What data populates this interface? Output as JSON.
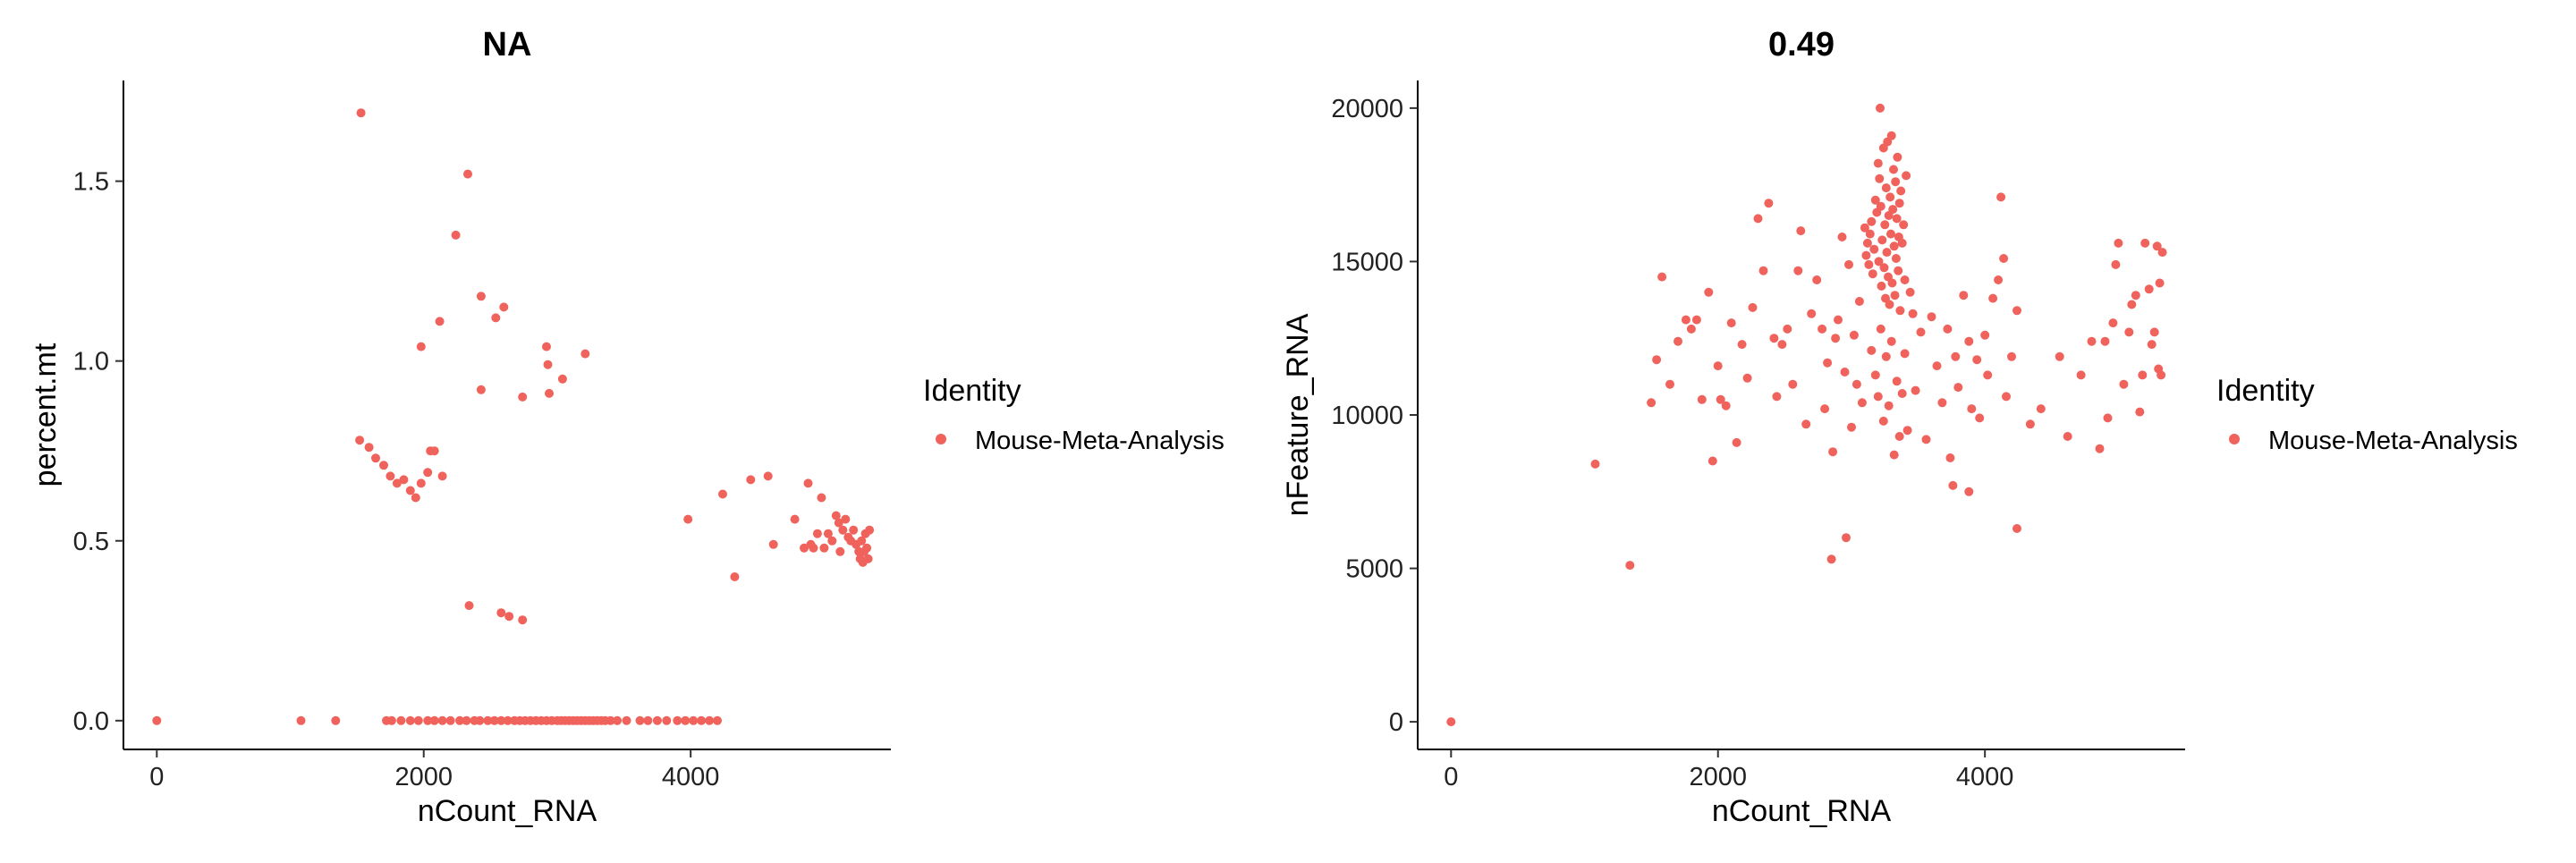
{
  "chart_data": [
    {
      "type": "scatter",
      "title": "NA",
      "xlabel": "nCount_RNA",
      "ylabel": "percent.mt",
      "xlim": [
        -250,
        5500
      ],
      "ylim": [
        -0.08,
        1.78
      ],
      "xticks": [
        0,
        2000,
        4000
      ],
      "xtick_labels": [
        "0",
        "2000",
        "4000"
      ],
      "yticks": [
        0,
        0.5,
        1,
        1.5
      ],
      "ytick_labels": [
        "0.0",
        "0.5",
        "1.0",
        "1.5"
      ],
      "grid": false,
      "color": "#F0625C",
      "legend": {
        "title": "Identity",
        "entries": [
          "Mouse-Meta-Analysis"
        ],
        "placement": "right"
      },
      "points": [
        [
          0,
          0
        ],
        [
          1080,
          0
        ],
        [
          1340,
          0
        ],
        [
          1720,
          0
        ],
        [
          1760,
          0
        ],
        [
          1830,
          0
        ],
        [
          1900,
          0
        ],
        [
          1960,
          0
        ],
        [
          2030,
          0
        ],
        [
          2080,
          0
        ],
        [
          2140,
          0
        ],
        [
          2200,
          0
        ],
        [
          2270,
          0
        ],
        [
          2320,
          0
        ],
        [
          2380,
          0
        ],
        [
          2420,
          0
        ],
        [
          2480,
          0
        ],
        [
          2530,
          0
        ],
        [
          2580,
          0
        ],
        [
          2630,
          0
        ],
        [
          2680,
          0
        ],
        [
          2720,
          0
        ],
        [
          2760,
          0
        ],
        [
          2800,
          0
        ],
        [
          2840,
          0
        ],
        [
          2880,
          0
        ],
        [
          2920,
          0
        ],
        [
          2960,
          0
        ],
        [
          3000,
          0
        ],
        [
          3030,
          0
        ],
        [
          3060,
          0
        ],
        [
          3090,
          0
        ],
        [
          3120,
          0
        ],
        [
          3150,
          0
        ],
        [
          3180,
          0
        ],
        [
          3210,
          0
        ],
        [
          3240,
          0
        ],
        [
          3270,
          0
        ],
        [
          3300,
          0
        ],
        [
          3330,
          0
        ],
        [
          3360,
          0
        ],
        [
          3400,
          0
        ],
        [
          3450,
          0
        ],
        [
          3520,
          0
        ],
        [
          3620,
          0
        ],
        [
          3680,
          0
        ],
        [
          3750,
          0
        ],
        [
          3820,
          0
        ],
        [
          3900,
          0
        ],
        [
          3960,
          0
        ],
        [
          4020,
          0
        ],
        [
          4080,
          0
        ],
        [
          4140,
          0
        ],
        [
          4200,
          0
        ],
        [
          1530,
          1.69
        ],
        [
          1520,
          0.78
        ],
        [
          1590,
          0.76
        ],
        [
          1640,
          0.73
        ],
        [
          1700,
          0.71
        ],
        [
          1750,
          0.68
        ],
        [
          1800,
          0.66
        ],
        [
          1850,
          0.67
        ],
        [
          1900,
          0.64
        ],
        [
          1940,
          0.62
        ],
        [
          1980,
          0.66
        ],
        [
          2030,
          0.69
        ],
        [
          2050,
          0.75
        ],
        [
          2080,
          0.75
        ],
        [
          2140,
          0.68
        ],
        [
          1980,
          1.04
        ],
        [
          2120,
          1.11
        ],
        [
          2240,
          1.35
        ],
        [
          2330,
          1.52
        ],
        [
          2430,
          1.18
        ],
        [
          2430,
          0.92
        ],
        [
          2540,
          1.12
        ],
        [
          2600,
          1.15
        ],
        [
          2740,
          0.9
        ],
        [
          2920,
          1.04
        ],
        [
          2930,
          0.99
        ],
        [
          2940,
          0.91
        ],
        [
          3040,
          0.95
        ],
        [
          3210,
          1.02
        ],
        [
          2340,
          0.32
        ],
        [
          2580,
          0.3
        ],
        [
          2640,
          0.29
        ],
        [
          2740,
          0.28
        ],
        [
          3980,
          0.56
        ],
        [
          4240,
          0.63
        ],
        [
          4330,
          0.4
        ],
        [
          4450,
          0.67
        ],
        [
          4580,
          0.68
        ],
        [
          4620,
          0.49
        ],
        [
          4780,
          0.56
        ],
        [
          4850,
          0.48
        ],
        [
          4880,
          0.66
        ],
        [
          4900,
          0.49
        ],
        [
          4920,
          0.48
        ],
        [
          4950,
          0.52
        ],
        [
          4980,
          0.62
        ],
        [
          5000,
          0.48
        ],
        [
          5030,
          0.52
        ],
        [
          5060,
          0.5
        ],
        [
          5090,
          0.57
        ],
        [
          5110,
          0.55
        ],
        [
          5120,
          0.47
        ],
        [
          5140,
          0.53
        ],
        [
          5160,
          0.56
        ],
        [
          5180,
          0.51
        ],
        [
          5200,
          0.5
        ],
        [
          5220,
          0.53
        ],
        [
          5240,
          0.49
        ],
        [
          5260,
          0.47
        ],
        [
          5270,
          0.45
        ],
        [
          5280,
          0.5
        ],
        [
          5290,
          0.44
        ],
        [
          5300,
          0.47
        ],
        [
          5310,
          0.52
        ],
        [
          5320,
          0.48
        ],
        [
          5330,
          0.45
        ],
        [
          5340,
          0.53
        ]
      ]
    },
    {
      "type": "scatter",
      "title": "0.49",
      "xlabel": "nCount_RNA",
      "ylabel": "nFeature_RNA",
      "xlim": [
        -250,
        5500
      ],
      "ylim": [
        -900,
        20900
      ],
      "xticks": [
        0,
        2000,
        4000
      ],
      "xtick_labels": [
        "0",
        "2000",
        "4000"
      ],
      "yticks": [
        0,
        5000,
        10000,
        15000,
        20000
      ],
      "ytick_labels": [
        "0",
        "5000",
        "10000",
        "15000",
        "20000"
      ],
      "grid": false,
      "color": "#F0625C",
      "legend": {
        "title": "Identity",
        "entries": [
          "Mouse-Meta-Analysis"
        ],
        "placement": "right"
      },
      "points": [
        [
          0,
          0
        ],
        [
          1080,
          8400
        ],
        [
          1340,
          5100
        ],
        [
          2850,
          5300
        ],
        [
          2960,
          6000
        ],
        [
          4240,
          6300
        ],
        [
          3760,
          7700
        ],
        [
          3880,
          7500
        ],
        [
          1500,
          10400
        ],
        [
          1540,
          11800
        ],
        [
          1580,
          14500
        ],
        [
          1640,
          11000
        ],
        [
          1700,
          12400
        ],
        [
          1760,
          13100
        ],
        [
          1800,
          12800
        ],
        [
          1840,
          13100
        ],
        [
          1880,
          10500
        ],
        [
          1930,
          14000
        ],
        [
          1960,
          8500
        ],
        [
          2000,
          11600
        ],
        [
          2020,
          10500
        ],
        [
          2060,
          10300
        ],
        [
          2100,
          13000
        ],
        [
          2140,
          9100
        ],
        [
          2180,
          12300
        ],
        [
          2220,
          11200
        ],
        [
          2260,
          13500
        ],
        [
          2300,
          16400
        ],
        [
          2340,
          14700
        ],
        [
          2380,
          16900
        ],
        [
          2420,
          12500
        ],
        [
          2440,
          10600
        ],
        [
          2480,
          12300
        ],
        [
          2520,
          12800
        ],
        [
          2560,
          11000
        ],
        [
          2600,
          14700
        ],
        [
          2620,
          16000
        ],
        [
          2660,
          9700
        ],
        [
          2700,
          13300
        ],
        [
          2740,
          14400
        ],
        [
          2780,
          12800
        ],
        [
          2800,
          10200
        ],
        [
          2820,
          11700
        ],
        [
          2860,
          8800
        ],
        [
          2880,
          12500
        ],
        [
          2900,
          13100
        ],
        [
          2930,
          15800
        ],
        [
          2950,
          11400
        ],
        [
          2980,
          14900
        ],
        [
          3000,
          9600
        ],
        [
          3020,
          12600
        ],
        [
          3040,
          11000
        ],
        [
          3060,
          13700
        ],
        [
          3080,
          10400
        ],
        [
          3100,
          16100
        ],
        [
          3110,
          15200
        ],
        [
          3120,
          15600
        ],
        [
          3130,
          14900
        ],
        [
          3140,
          15900
        ],
        [
          3150,
          16300
        ],
        [
          3160,
          14600
        ],
        [
          3170,
          15400
        ],
        [
          3180,
          17000
        ],
        [
          3190,
          16600
        ],
        [
          3200,
          18200
        ],
        [
          3205,
          15000
        ],
        [
          3210,
          17700
        ],
        [
          3215,
          20000
        ],
        [
          3220,
          16800
        ],
        [
          3225,
          14200
        ],
        [
          3230,
          15700
        ],
        [
          3240,
          18700
        ],
        [
          3245,
          14800
        ],
        [
          3250,
          16200
        ],
        [
          3255,
          13800
        ],
        [
          3260,
          17400
        ],
        [
          3265,
          15300
        ],
        [
          3270,
          18900
        ],
        [
          3275,
          14500
        ],
        [
          3280,
          16500
        ],
        [
          3285,
          13600
        ],
        [
          3290,
          17100
        ],
        [
          3295,
          15900
        ],
        [
          3300,
          19100
        ],
        [
          3305,
          14300
        ],
        [
          3310,
          16700
        ],
        [
          3315,
          18000
        ],
        [
          3320,
          15500
        ],
        [
          3325,
          13900
        ],
        [
          3330,
          17600
        ],
        [
          3335,
          15100
        ],
        [
          3340,
          16400
        ],
        [
          3345,
          18400
        ],
        [
          3350,
          14700
        ],
        [
          3355,
          15800
        ],
        [
          3360,
          16900
        ],
        [
          3365,
          13400
        ],
        [
          3370,
          17300
        ],
        [
          3380,
          15600
        ],
        [
          3390,
          16200
        ],
        [
          3400,
          14400
        ],
        [
          3410,
          17800
        ],
        [
          3150,
          12100
        ],
        [
          3180,
          11300
        ],
        [
          3200,
          10600
        ],
        [
          3220,
          12800
        ],
        [
          3240,
          9800
        ],
        [
          3260,
          11900
        ],
        [
          3280,
          10300
        ],
        [
          3300,
          12400
        ],
        [
          3320,
          8700
        ],
        [
          3340,
          11100
        ],
        [
          3360,
          9300
        ],
        [
          3380,
          10700
        ],
        [
          3400,
          12000
        ],
        [
          3420,
          9500
        ],
        [
          3440,
          14000
        ],
        [
          3460,
          13300
        ],
        [
          3480,
          10800
        ],
        [
          3520,
          12700
        ],
        [
          3560,
          9200
        ],
        [
          3600,
          13200
        ],
        [
          3640,
          11600
        ],
        [
          3680,
          10400
        ],
        [
          3720,
          12800
        ],
        [
          3740,
          8600
        ],
        [
          3780,
          11900
        ],
        [
          3800,
          10900
        ],
        [
          3840,
          13900
        ],
        [
          3880,
          12400
        ],
        [
          3900,
          10200
        ],
        [
          3940,
          11800
        ],
        [
          3960,
          9900
        ],
        [
          4000,
          12600
        ],
        [
          4020,
          11300
        ],
        [
          4060,
          13800
        ],
        [
          4100,
          14400
        ],
        [
          4120,
          17100
        ],
        [
          4140,
          15100
        ],
        [
          4160,
          10600
        ],
        [
          4200,
          11900
        ],
        [
          4240,
          13400
        ],
        [
          4340,
          9700
        ],
        [
          4420,
          10200
        ],
        [
          4560,
          11900
        ],
        [
          4620,
          9300
        ],
        [
          4720,
          11300
        ],
        [
          4800,
          12400
        ],
        [
          4860,
          8900
        ],
        [
          4900,
          12400
        ],
        [
          4920,
          9900
        ],
        [
          4960,
          13000
        ],
        [
          4980,
          14900
        ],
        [
          5000,
          15600
        ],
        [
          5040,
          11000
        ],
        [
          5080,
          12700
        ],
        [
          5100,
          13600
        ],
        [
          5130,
          13900
        ],
        [
          5160,
          10100
        ],
        [
          5180,
          11300
        ],
        [
          5200,
          15600
        ],
        [
          5230,
          14100
        ],
        [
          5250,
          12300
        ],
        [
          5270,
          12700
        ],
        [
          5290,
          15500
        ],
        [
          5300,
          11500
        ],
        [
          5310,
          14300
        ],
        [
          5320,
          11300
        ],
        [
          5330,
          15300
        ]
      ]
    }
  ]
}
